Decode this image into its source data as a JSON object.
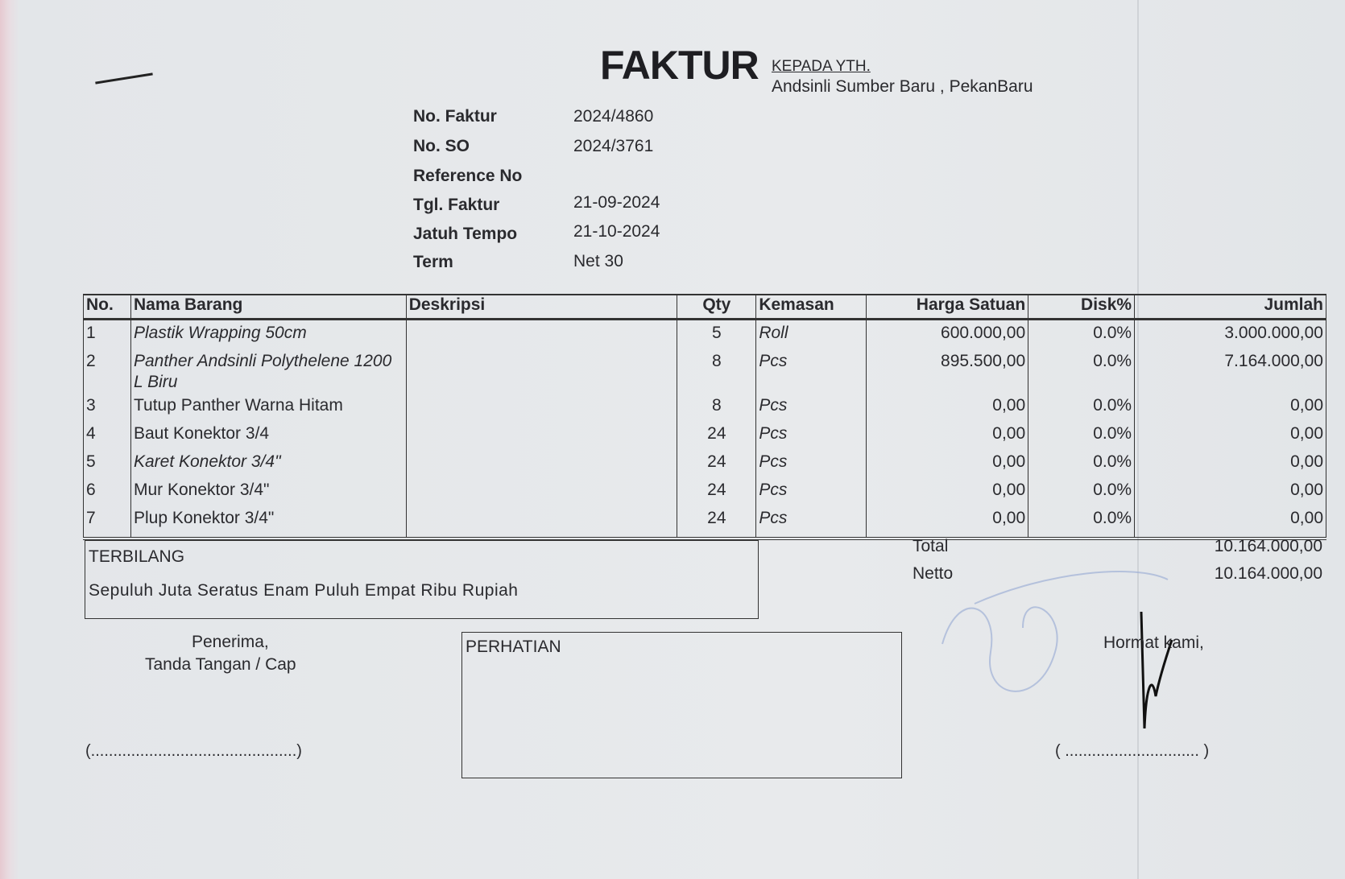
{
  "header": {
    "title": "FAKTUR",
    "to_label": "KEPADA YTH.",
    "to_name": "Andsinli Sumber Baru , PekanBaru"
  },
  "info": [
    {
      "label": "No. Faktur",
      "value": "2024/4860"
    },
    {
      "label": "No. SO",
      "value": "2024/3761"
    },
    {
      "label": "Reference No",
      "value": ""
    },
    {
      "label": "Tgl. Faktur",
      "value": "21-09-2024"
    },
    {
      "label": "Jatuh Tempo",
      "value": "21-10-2024"
    },
    {
      "label": "Term",
      "value": "Net 30"
    }
  ],
  "table": {
    "columns": [
      "No.",
      "Nama Barang",
      "Deskripsi",
      "Qty",
      "Kemasan",
      "Harga Satuan",
      "Disk%",
      "Jumlah"
    ],
    "rows": [
      {
        "no": "1",
        "name": "Plastik Wrapping 50cm",
        "desc": "",
        "qty": "5",
        "unit": "Roll",
        "price": "600.000,00",
        "disc": "0.0%",
        "amount": "3.000.000,00"
      },
      {
        "no": "2",
        "name": "Panther Andsinli Polythelene 1200 L Biru",
        "desc": "",
        "qty": "8",
        "unit": "Pcs",
        "price": "895.500,00",
        "disc": "0.0%",
        "amount": "7.164.000,00"
      },
      {
        "no": "3",
        "name": "Tutup Panther Warna Hitam",
        "desc": "",
        "qty": "8",
        "unit": "Pcs",
        "price": "0,00",
        "disc": "0.0%",
        "amount": "0,00"
      },
      {
        "no": "4",
        "name": "Baut Konektor 3/4",
        "desc": "",
        "qty": "24",
        "unit": "Pcs",
        "price": "0,00",
        "disc": "0.0%",
        "amount": "0,00"
      },
      {
        "no": "5",
        "name": "Karet Konektor 3/4\"",
        "desc": "",
        "qty": "24",
        "unit": "Pcs",
        "price": "0,00",
        "disc": "0.0%",
        "amount": "0,00"
      },
      {
        "no": "6",
        "name": "Mur Konektor 3/4\"",
        "desc": "",
        "qty": "24",
        "unit": "Pcs",
        "price": "0,00",
        "disc": "0.0%",
        "amount": "0,00"
      },
      {
        "no": "7",
        "name": "Plup Konektor 3/4\"",
        "desc": "",
        "qty": "24",
        "unit": "Pcs",
        "price": "0,00",
        "disc": "0.0%",
        "amount": "0,00"
      }
    ]
  },
  "terbilang": {
    "label": "TERBILANG",
    "text": "Sepuluh Juta Seratus Enam Puluh Empat Ribu Rupiah"
  },
  "totals": {
    "total_label": "Total",
    "total": "10.164.000,00",
    "netto_label": "Netto",
    "netto": "10.164.000,00"
  },
  "receiver": {
    "line1": "Penerima,",
    "line2": "Tanda Tangan / Cap",
    "sign_line": "(..............................................)"
  },
  "perhatian": {
    "label": "PERHATIAN"
  },
  "sender": {
    "label": "Hormat kami,",
    "sign_line": "( .............................. )"
  }
}
